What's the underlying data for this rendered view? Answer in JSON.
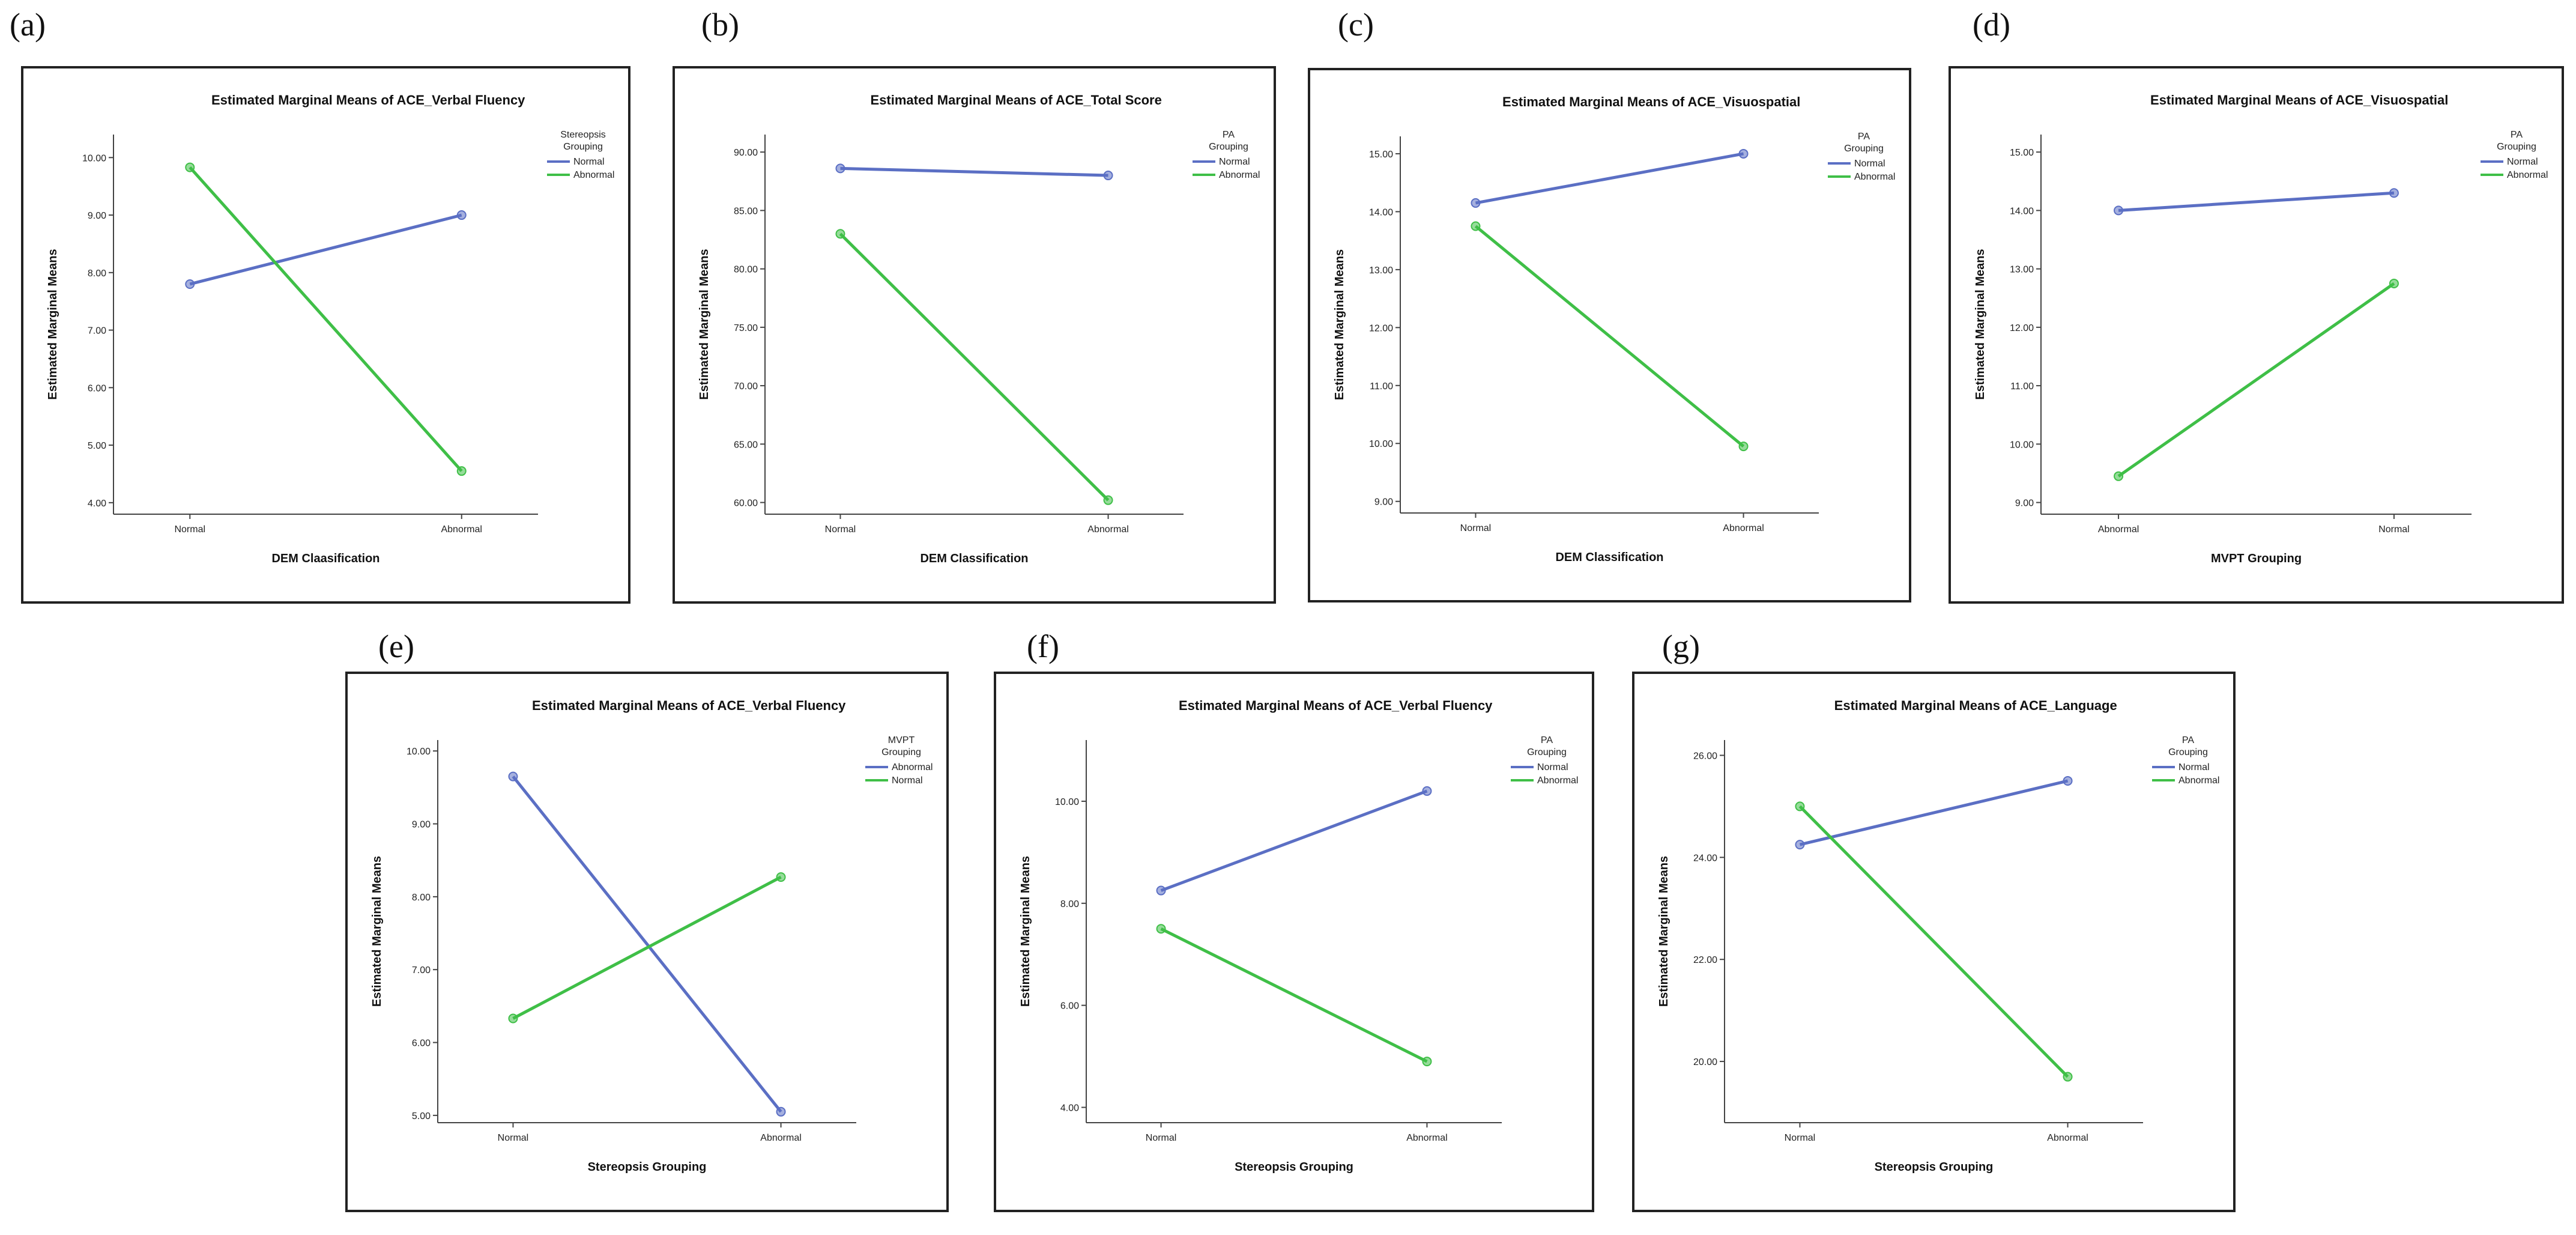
{
  "colors": {
    "series_1": "#5b6fc4",
    "series_2": "#3fbf47"
  },
  "chart_data": [
    {
      "letter": "(a)",
      "type": "line",
      "title": "Estimated Marginal Means of ACE_Verbal Fluency",
      "ylabel": "Estimated Marginal Means",
      "xlabel": "DEM Claasification",
      "categories": [
        "Normal",
        "Abnormal"
      ],
      "ylim": [
        3.8,
        10.4
      ],
      "yticks": [
        4.0,
        5.0,
        6.0,
        7.0,
        8.0,
        9.0,
        10.0
      ],
      "yticklabels": [
        "4.00",
        "5.00",
        "6.00",
        "7.00",
        "8.00",
        "9.00",
        "10.00"
      ],
      "legend_title": [
        "Stereopsis",
        "Grouping"
      ],
      "series": [
        {
          "name": "Normal",
          "values": [
            7.8,
            9.0
          ]
        },
        {
          "name": "Abnormal",
          "values": [
            9.83,
            4.55
          ]
        }
      ]
    },
    {
      "letter": "(b)",
      "type": "line",
      "title": "Estimated Marginal Means of ACE_Total Score",
      "ylabel": "Estimated Marginal Means",
      "xlabel": "DEM Classification",
      "categories": [
        "Normal",
        "Abnormal"
      ],
      "ylim": [
        59.0,
        91.5
      ],
      "yticks": [
        60.0,
        65.0,
        70.0,
        75.0,
        80.0,
        85.0,
        90.0
      ],
      "yticklabels": [
        "60.00",
        "65.00",
        "70.00",
        "75.00",
        "80.00",
        "85.00",
        "90.00"
      ],
      "legend_title": [
        "PA",
        "Grouping"
      ],
      "series": [
        {
          "name": "Normal",
          "values": [
            88.6,
            88.0
          ]
        },
        {
          "name": "Abnormal",
          "values": [
            83.0,
            60.2
          ]
        }
      ]
    },
    {
      "letter": "(c)",
      "type": "line",
      "title": "Estimated Marginal Means of ACE_Visuospatial",
      "ylabel": "Estimated Marginal Means",
      "xlabel": "DEM Classification",
      "categories": [
        "Normal",
        "Abnormal"
      ],
      "ylim": [
        8.8,
        15.3
      ],
      "yticks": [
        9.0,
        10.0,
        11.0,
        12.0,
        13.0,
        14.0,
        15.0
      ],
      "yticklabels": [
        "9.00",
        "10.00",
        "11.00",
        "12.00",
        "13.00",
        "14.00",
        "15.00"
      ],
      "legend_title": [
        "PA",
        "Grouping"
      ],
      "series": [
        {
          "name": "Normal",
          "values": [
            14.15,
            15.0
          ]
        },
        {
          "name": "Abnormal",
          "values": [
            13.75,
            9.95
          ]
        }
      ]
    },
    {
      "letter": "(d)",
      "type": "line",
      "title": "Estimated Marginal Means of ACE_Visuospatial",
      "ylabel": "Estimated Marginal Means",
      "xlabel": "MVPT Grouping",
      "categories": [
        "Abnormal",
        "Normal"
      ],
      "ylim": [
        8.8,
        15.3
      ],
      "yticks": [
        9.0,
        10.0,
        11.0,
        12.0,
        13.0,
        14.0,
        15.0
      ],
      "yticklabels": [
        "9.00",
        "10.00",
        "11.00",
        "12.00",
        "13.00",
        "14.00",
        "15.00"
      ],
      "legend_title": [
        "PA",
        "Grouping"
      ],
      "series": [
        {
          "name": "Normal",
          "values": [
            14.0,
            14.3
          ]
        },
        {
          "name": "Abnormal",
          "values": [
            9.45,
            12.75
          ]
        }
      ]
    },
    {
      "letter": "(e)",
      "type": "line",
      "title": "Estimated Marginal Means of ACE_Verbal Fluency",
      "ylabel": "Estimated Marginal Means",
      "xlabel": "Stereopsis Grouping",
      "categories": [
        "Normal",
        "Abnormal"
      ],
      "ylim": [
        4.9,
        10.15
      ],
      "yticks": [
        5.0,
        6.0,
        7.0,
        8.0,
        9.0,
        10.0
      ],
      "yticklabels": [
        "5.00",
        "6.00",
        "7.00",
        "8.00",
        "9.00",
        "10.00"
      ],
      "legend_title": [
        "MVPT",
        "Grouping"
      ],
      "series": [
        {
          "name": "Abnormal",
          "values": [
            9.65,
            5.05
          ]
        },
        {
          "name": "Normal",
          "values": [
            6.33,
            8.27
          ]
        }
      ]
    },
    {
      "letter": "(f)",
      "type": "line",
      "title": "Estimated Marginal Means of ACE_Verbal Fluency",
      "ylabel": "Estimated Marginal Means",
      "xlabel": "Stereopsis Grouping",
      "categories": [
        "Normal",
        "Abnormal"
      ],
      "ylim": [
        3.7,
        11.2
      ],
      "yticks": [
        4.0,
        6.0,
        8.0,
        10.0
      ],
      "yticklabels": [
        "4.00",
        "6.00",
        "8.00",
        "10.00"
      ],
      "legend_title": [
        "PA",
        "Grouping"
      ],
      "series": [
        {
          "name": "Normal",
          "values": [
            8.25,
            10.2
          ]
        },
        {
          "name": "Abnormal",
          "values": [
            7.5,
            4.9
          ]
        }
      ]
    },
    {
      "letter": "(g)",
      "type": "line",
      "title": "Estimated Marginal Means of ACE_Language",
      "ylabel": "Estimated Marginal Means",
      "xlabel": "Stereopsis Grouping",
      "categories": [
        "Normal",
        "Abnormal"
      ],
      "ylim": [
        18.8,
        26.3
      ],
      "yticks": [
        20.0,
        22.0,
        24.0,
        26.0
      ],
      "yticklabels": [
        "20.00",
        "22.00",
        "24.00",
        "26.00"
      ],
      "legend_title": [
        "PA",
        "Grouping"
      ],
      "series": [
        {
          "name": "Normal",
          "values": [
            24.25,
            25.5
          ]
        },
        {
          "name": "Abnormal",
          "values": [
            25.0,
            19.7
          ]
        }
      ]
    }
  ]
}
